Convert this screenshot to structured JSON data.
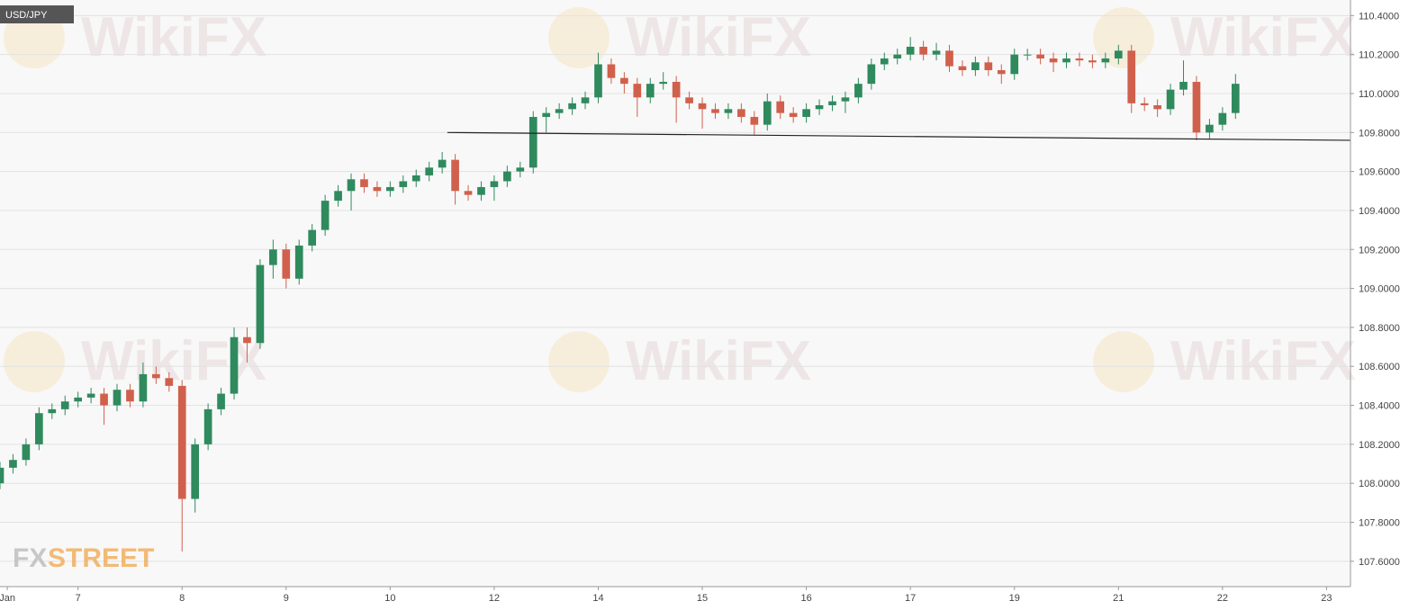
{
  "chart_data": {
    "type": "candlestick",
    "title": "USD/JPY",
    "watermark": "WikiFX",
    "logo": {
      "left": "FX",
      "right": "STREET"
    },
    "up_color": "#2f8a5e",
    "down_color": "#d0604c",
    "grid": true,
    "xlim": [
      -0.75,
      12.23
    ],
    "ylim": [
      107.47,
      110.48
    ],
    "xticks": [
      {
        "value": -0.68,
        "label": "Jan"
      },
      {
        "value": 0,
        "label": "7"
      },
      {
        "value": 1,
        "label": "8"
      },
      {
        "value": 2,
        "label": "9"
      },
      {
        "value": 3,
        "label": "10"
      },
      {
        "value": 4,
        "label": "12"
      },
      {
        "value": 5,
        "label": "14"
      },
      {
        "value": 6,
        "label": "15"
      },
      {
        "value": 7,
        "label": "16"
      },
      {
        "value": 8,
        "label": "17"
      },
      {
        "value": 9,
        "label": "19"
      },
      {
        "value": 10,
        "label": "21"
      },
      {
        "value": 11,
        "label": "22"
      },
      {
        "value": 12,
        "label": "23"
      }
    ],
    "yticks": [
      {
        "value": 107.6,
        "label": "107.6000"
      },
      {
        "value": 107.8,
        "label": "107.8000"
      },
      {
        "value": 108.0,
        "label": "108.0000"
      },
      {
        "value": 108.2,
        "label": "108.2000"
      },
      {
        "value": 108.4,
        "label": "108.4000"
      },
      {
        "value": 108.6,
        "label": "108.6000"
      },
      {
        "value": 108.8,
        "label": "108.8000"
      },
      {
        "value": 109.0,
        "label": "109.0000"
      },
      {
        "value": 109.2,
        "label": "109.2000"
      },
      {
        "value": 109.4,
        "label": "109.4000"
      },
      {
        "value": 109.6,
        "label": "109.6000"
      },
      {
        "value": 109.8,
        "label": "109.8000"
      },
      {
        "value": 110.0,
        "label": "110.0000"
      },
      {
        "value": 110.2,
        "label": "110.2000"
      },
      {
        "value": 110.4,
        "label": "110.4000"
      }
    ],
    "trendline": {
      "x": [
        3.55,
        12.23
      ],
      "y": [
        109.8,
        109.76
      ]
    },
    "x": [
      -0.75,
      -0.625,
      -0.5,
      -0.375,
      -0.25,
      -0.125,
      0,
      0.125,
      0.25,
      0.375,
      0.5,
      0.625,
      0.75,
      0.875,
      1,
      1.125,
      1.25,
      1.375,
      1.5,
      1.625,
      1.75,
      1.875,
      2,
      2.125,
      2.25,
      2.375,
      2.5,
      2.625,
      2.75,
      2.875,
      3,
      3.125,
      3.25,
      3.375,
      3.5,
      3.625,
      3.75,
      3.875,
      4,
      4.125,
      4.25,
      4.375,
      4.5,
      4.625,
      4.75,
      4.875,
      5,
      5.125,
      5.25,
      5.375,
      5.5,
      5.625,
      5.75,
      5.875,
      6,
      6.125,
      6.25,
      6.375,
      6.5,
      6.625,
      6.75,
      6.875,
      7,
      7.125,
      7.25,
      7.375,
      7.5,
      7.625,
      7.75,
      7.875,
      8,
      8.125,
      8.25,
      8.375,
      8.5,
      8.625,
      8.75,
      8.875,
      9,
      9.125,
      9.25,
      9.375,
      9.5,
      9.625,
      9.75,
      9.875,
      10,
      10.125,
      10.25,
      10.375,
      10.5,
      10.625,
      10.75,
      10.875,
      11,
      11.125
    ],
    "ohlc": [
      [
        108.0,
        108.11,
        107.97,
        108.08
      ],
      [
        108.08,
        108.15,
        108.05,
        108.12
      ],
      [
        108.12,
        108.23,
        108.09,
        108.2
      ],
      [
        108.2,
        108.39,
        108.17,
        108.36
      ],
      [
        108.36,
        108.41,
        108.33,
        108.38
      ],
      [
        108.38,
        108.45,
        108.35,
        108.42
      ],
      [
        108.42,
        108.47,
        108.39,
        108.44
      ],
      [
        108.44,
        108.49,
        108.41,
        108.46
      ],
      [
        108.46,
        108.49,
        108.3,
        108.4
      ],
      [
        108.4,
        108.51,
        108.37,
        108.48
      ],
      [
        108.48,
        108.51,
        108.39,
        108.42
      ],
      [
        108.42,
        108.62,
        108.39,
        108.56
      ],
      [
        108.56,
        108.6,
        108.51,
        108.54
      ],
      [
        108.54,
        108.57,
        108.47,
        108.5
      ],
      [
        108.5,
        108.53,
        107.65,
        107.92
      ],
      [
        107.92,
        108.23,
        107.85,
        108.2
      ],
      [
        108.2,
        108.41,
        108.17,
        108.38
      ],
      [
        108.38,
        108.49,
        108.35,
        108.46
      ],
      [
        108.46,
        108.8,
        108.43,
        108.75
      ],
      [
        108.75,
        108.8,
        108.62,
        108.72
      ],
      [
        108.72,
        109.15,
        108.69,
        109.12
      ],
      [
        109.12,
        109.25,
        109.05,
        109.2
      ],
      [
        109.2,
        109.23,
        109.0,
        109.05
      ],
      [
        109.05,
        109.25,
        109.02,
        109.22
      ],
      [
        109.22,
        109.33,
        109.19,
        109.3
      ],
      [
        109.3,
        109.48,
        109.27,
        109.45
      ],
      [
        109.45,
        109.53,
        109.42,
        109.5
      ],
      [
        109.5,
        109.59,
        109.4,
        109.56
      ],
      [
        109.56,
        109.59,
        109.49,
        109.52
      ],
      [
        109.52,
        109.55,
        109.47,
        109.5
      ],
      [
        109.5,
        109.55,
        109.47,
        109.52
      ],
      [
        109.52,
        109.58,
        109.49,
        109.55
      ],
      [
        109.55,
        109.61,
        109.52,
        109.58
      ],
      [
        109.58,
        109.65,
        109.55,
        109.62
      ],
      [
        109.62,
        109.7,
        109.59,
        109.66
      ],
      [
        109.66,
        109.69,
        109.43,
        109.5
      ],
      [
        109.5,
        109.53,
        109.45,
        109.48
      ],
      [
        109.48,
        109.55,
        109.45,
        109.52
      ],
      [
        109.52,
        109.58,
        109.45,
        109.55
      ],
      [
        109.55,
        109.63,
        109.52,
        109.6
      ],
      [
        109.6,
        109.65,
        109.57,
        109.62
      ],
      [
        109.62,
        109.91,
        109.59,
        109.88
      ],
      [
        109.88,
        109.93,
        109.8,
        109.9
      ],
      [
        109.9,
        109.95,
        109.87,
        109.92
      ],
      [
        109.92,
        109.98,
        109.89,
        109.95
      ],
      [
        109.95,
        110.01,
        109.92,
        109.98
      ],
      [
        109.98,
        110.21,
        109.95,
        110.15
      ],
      [
        110.15,
        110.18,
        110.05,
        110.08
      ],
      [
        110.08,
        110.11,
        110.0,
        110.05
      ],
      [
        110.05,
        110.08,
        109.88,
        109.98
      ],
      [
        109.98,
        110.08,
        109.95,
        110.05
      ],
      [
        110.05,
        110.11,
        110.02,
        110.06
      ],
      [
        110.06,
        110.09,
        109.85,
        109.98
      ],
      [
        109.98,
        110.01,
        109.92,
        109.95
      ],
      [
        109.95,
        109.98,
        109.82,
        109.92
      ],
      [
        109.92,
        109.95,
        109.87,
        109.9
      ],
      [
        109.9,
        109.95,
        109.87,
        109.92
      ],
      [
        109.92,
        109.95,
        109.85,
        109.88
      ],
      [
        109.88,
        109.91,
        109.79,
        109.84
      ],
      [
        109.84,
        110.0,
        109.81,
        109.96
      ],
      [
        109.96,
        109.99,
        109.87,
        109.9
      ],
      [
        109.9,
        109.93,
        109.85,
        109.88
      ],
      [
        109.88,
        109.95,
        109.85,
        109.92
      ],
      [
        109.92,
        109.97,
        109.89,
        109.94
      ],
      [
        109.94,
        109.99,
        109.91,
        109.96
      ],
      [
        109.96,
        110.01,
        109.9,
        109.98
      ],
      [
        109.98,
        110.08,
        109.95,
        110.05
      ],
      [
        110.05,
        110.18,
        110.02,
        110.15
      ],
      [
        110.15,
        110.21,
        110.12,
        110.18
      ],
      [
        110.18,
        110.23,
        110.15,
        110.2
      ],
      [
        110.2,
        110.29,
        110.17,
        110.24
      ],
      [
        110.24,
        110.27,
        110.17,
        110.2
      ],
      [
        110.2,
        110.26,
        110.17,
        110.22
      ],
      [
        110.22,
        110.25,
        110.11,
        110.14
      ],
      [
        110.14,
        110.17,
        110.09,
        110.12
      ],
      [
        110.12,
        110.19,
        110.09,
        110.16
      ],
      [
        110.16,
        110.19,
        110.09,
        110.12
      ],
      [
        110.12,
        110.15,
        110.05,
        110.1
      ],
      [
        110.1,
        110.23,
        110.07,
        110.2
      ],
      [
        110.2,
        110.23,
        110.17,
        110.2
      ],
      [
        110.2,
        110.23,
        110.15,
        110.18
      ],
      [
        110.18,
        110.21,
        110.11,
        110.16
      ],
      [
        110.16,
        110.21,
        110.13,
        110.18
      ],
      [
        110.18,
        110.21,
        110.14,
        110.17
      ],
      [
        110.17,
        110.2,
        110.13,
        110.16
      ],
      [
        110.16,
        110.21,
        110.13,
        110.18
      ],
      [
        110.18,
        110.25,
        110.15,
        110.22
      ],
      [
        110.22,
        110.25,
        109.9,
        109.95
      ],
      [
        109.95,
        109.98,
        109.91,
        109.94
      ],
      [
        109.94,
        109.97,
        109.88,
        109.92
      ],
      [
        109.92,
        110.05,
        109.89,
        110.02
      ],
      [
        110.02,
        110.17,
        109.99,
        110.06
      ],
      [
        110.06,
        110.09,
        109.76,
        109.8
      ],
      [
        109.8,
        109.87,
        109.77,
        109.84
      ],
      [
        109.84,
        109.93,
        109.81,
        109.9
      ],
      [
        109.9,
        110.1,
        109.87,
        110.05
      ]
    ]
  }
}
